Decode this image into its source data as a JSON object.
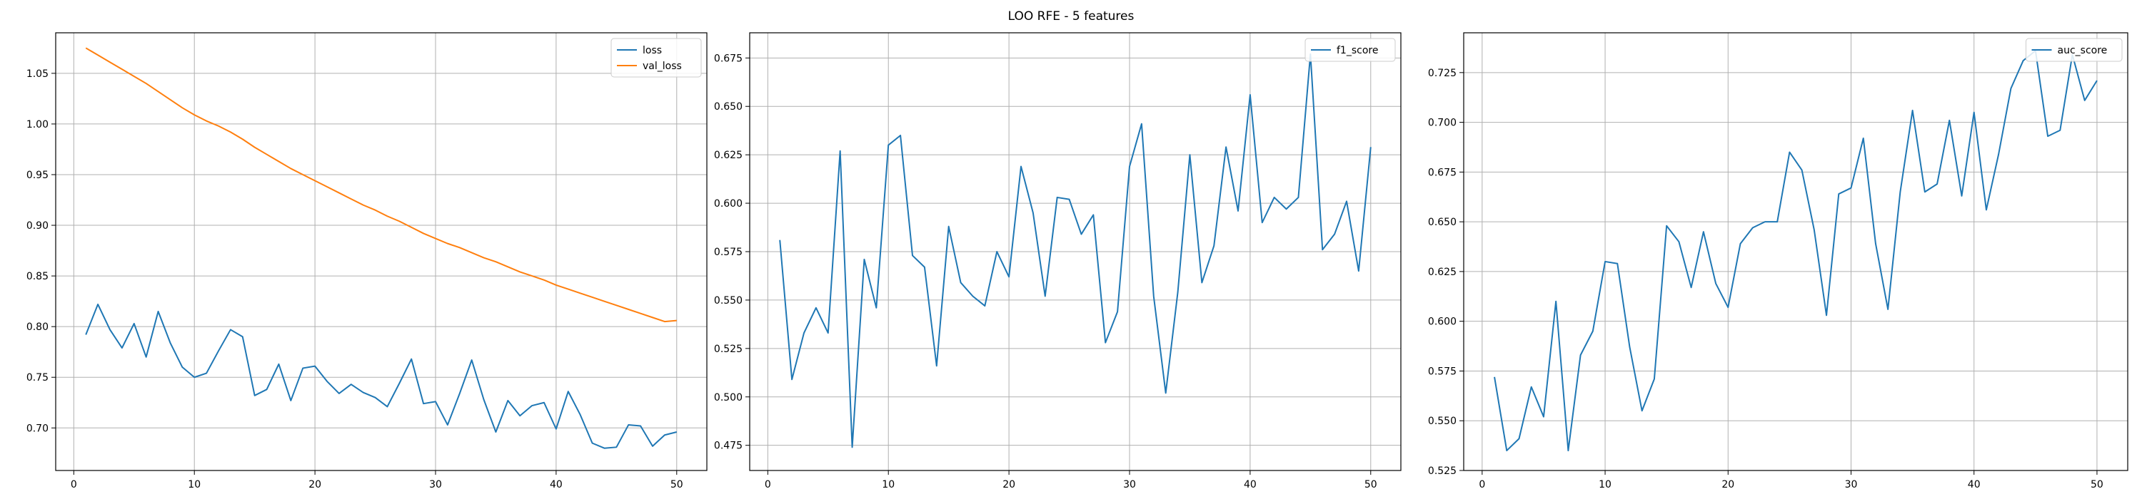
{
  "figure": {
    "title": "LOO RFE - 5 features"
  },
  "colors": {
    "series1": "#1f77b4",
    "series2": "#ff7f0e",
    "grid": "#b0b0b0"
  },
  "chart_data": [
    {
      "type": "line",
      "legend": "top-right",
      "grid": true,
      "xlim": [
        -1.5,
        52.5
      ],
      "ylim": [
        0.658,
        1.09
      ],
      "xticks": [
        0,
        10,
        20,
        30,
        40,
        50
      ],
      "yticks": [
        0.7,
        0.75,
        0.8,
        0.85,
        0.9,
        0.95,
        1.0,
        1.05
      ],
      "x": [
        1,
        2,
        3,
        4,
        5,
        6,
        7,
        8,
        9,
        10,
        11,
        12,
        13,
        14,
        15,
        16,
        17,
        18,
        19,
        20,
        21,
        22,
        23,
        24,
        25,
        26,
        27,
        28,
        29,
        30,
        31,
        32,
        33,
        34,
        35,
        36,
        37,
        38,
        39,
        40,
        41,
        42,
        43,
        44,
        45,
        46,
        47,
        48,
        49,
        50
      ],
      "series": [
        {
          "name": "loss",
          "color": "#1f77b4",
          "values": [
            0.792,
            0.822,
            0.797,
            0.779,
            0.803,
            0.77,
            0.815,
            0.784,
            0.76,
            0.75,
            0.754,
            0.776,
            0.797,
            0.79,
            0.732,
            0.738,
            0.763,
            0.727,
            0.759,
            0.761,
            0.746,
            0.734,
            0.743,
            0.735,
            0.73,
            0.721,
            0.744,
            0.768,
            0.724,
            0.726,
            0.703,
            0.734,
            0.767,
            0.728,
            0.696,
            0.727,
            0.712,
            0.722,
            0.725,
            0.699,
            0.736,
            0.713,
            0.685,
            0.68,
            0.681,
            0.703,
            0.702,
            0.682,
            0.693,
            0.696
          ]
        },
        {
          "name": "val_loss",
          "color": "#ff7f0e",
          "values": [
            1.075,
            1.068,
            1.061,
            1.054,
            1.047,
            1.04,
            1.032,
            1.024,
            1.016,
            1.009,
            1.003,
            0.998,
            0.992,
            0.985,
            0.977,
            0.97,
            0.963,
            0.956,
            0.95,
            0.944,
            0.938,
            0.932,
            0.926,
            0.92,
            0.915,
            0.909,
            0.904,
            0.898,
            0.892,
            0.887,
            0.882,
            0.878,
            0.873,
            0.868,
            0.864,
            0.859,
            0.854,
            0.85,
            0.846,
            0.841,
            0.837,
            0.833,
            0.829,
            0.825,
            0.821,
            0.817,
            0.813,
            0.809,
            0.805,
            0.806
          ]
        }
      ]
    },
    {
      "type": "line",
      "legend": "top-right",
      "grid": true,
      "xlim": [
        -1.5,
        52.5
      ],
      "ylim": [
        0.462,
        0.688
      ],
      "xticks": [
        0,
        10,
        20,
        30,
        40,
        50
      ],
      "yticks": [
        0.475,
        0.5,
        0.525,
        0.55,
        0.575,
        0.6,
        0.625,
        0.65,
        0.675
      ],
      "x": [
        1,
        2,
        3,
        4,
        5,
        6,
        7,
        8,
        9,
        10,
        11,
        12,
        13,
        14,
        15,
        16,
        17,
        18,
        19,
        20,
        21,
        22,
        23,
        24,
        25,
        26,
        27,
        28,
        29,
        30,
        31,
        32,
        33,
        34,
        35,
        36,
        37,
        38,
        39,
        40,
        41,
        42,
        43,
        44,
        45,
        46,
        47,
        48,
        49,
        50
      ],
      "series": [
        {
          "name": "f1_score",
          "color": "#1f77b4",
          "values": [
            0.581,
            0.509,
            0.533,
            0.546,
            0.533,
            0.627,
            0.474,
            0.571,
            0.546,
            0.63,
            0.635,
            0.573,
            0.567,
            0.516,
            0.588,
            0.559,
            0.552,
            0.547,
            0.575,
            0.562,
            0.619,
            0.595,
            0.552,
            0.603,
            0.602,
            0.584,
            0.594,
            0.528,
            0.544,
            0.619,
            0.641,
            0.552,
            0.502,
            0.554,
            0.625,
            0.559,
            0.578,
            0.629,
            0.596,
            0.656,
            0.59,
            0.603,
            0.597,
            0.603,
            0.677,
            0.576,
            0.584,
            0.601,
            0.565,
            0.629
          ]
        }
      ]
    },
    {
      "type": "line",
      "legend": "top-right",
      "grid": true,
      "xlim": [
        -1.5,
        52.5
      ],
      "ylim": [
        0.525,
        0.745
      ],
      "xticks": [
        0,
        10,
        20,
        30,
        40,
        50
      ],
      "yticks": [
        0.525,
        0.55,
        0.575,
        0.6,
        0.625,
        0.65,
        0.675,
        0.7,
        0.725
      ],
      "x": [
        1,
        2,
        3,
        4,
        5,
        6,
        7,
        8,
        9,
        10,
        11,
        12,
        13,
        14,
        15,
        16,
        17,
        18,
        19,
        20,
        21,
        22,
        23,
        24,
        25,
        26,
        27,
        28,
        29,
        30,
        31,
        32,
        33,
        34,
        35,
        36,
        37,
        38,
        39,
        40,
        41,
        42,
        43,
        44,
        45,
        46,
        47,
        48,
        49,
        50
      ],
      "series": [
        {
          "name": "auc_score",
          "color": "#1f77b4",
          "values": [
            0.572,
            0.535,
            0.541,
            0.567,
            0.552,
            0.61,
            0.535,
            0.583,
            0.595,
            0.63,
            0.629,
            0.587,
            0.555,
            0.571,
            0.648,
            0.64,
            0.617,
            0.645,
            0.619,
            0.607,
            0.639,
            0.647,
            0.65,
            0.65,
            0.685,
            0.676,
            0.646,
            0.603,
            0.664,
            0.667,
            0.692,
            0.639,
            0.606,
            0.665,
            0.706,
            0.665,
            0.669,
            0.701,
            0.663,
            0.705,
            0.656,
            0.684,
            0.717,
            0.731,
            0.736,
            0.693,
            0.696,
            0.734,
            0.711,
            0.721
          ]
        }
      ]
    }
  ]
}
